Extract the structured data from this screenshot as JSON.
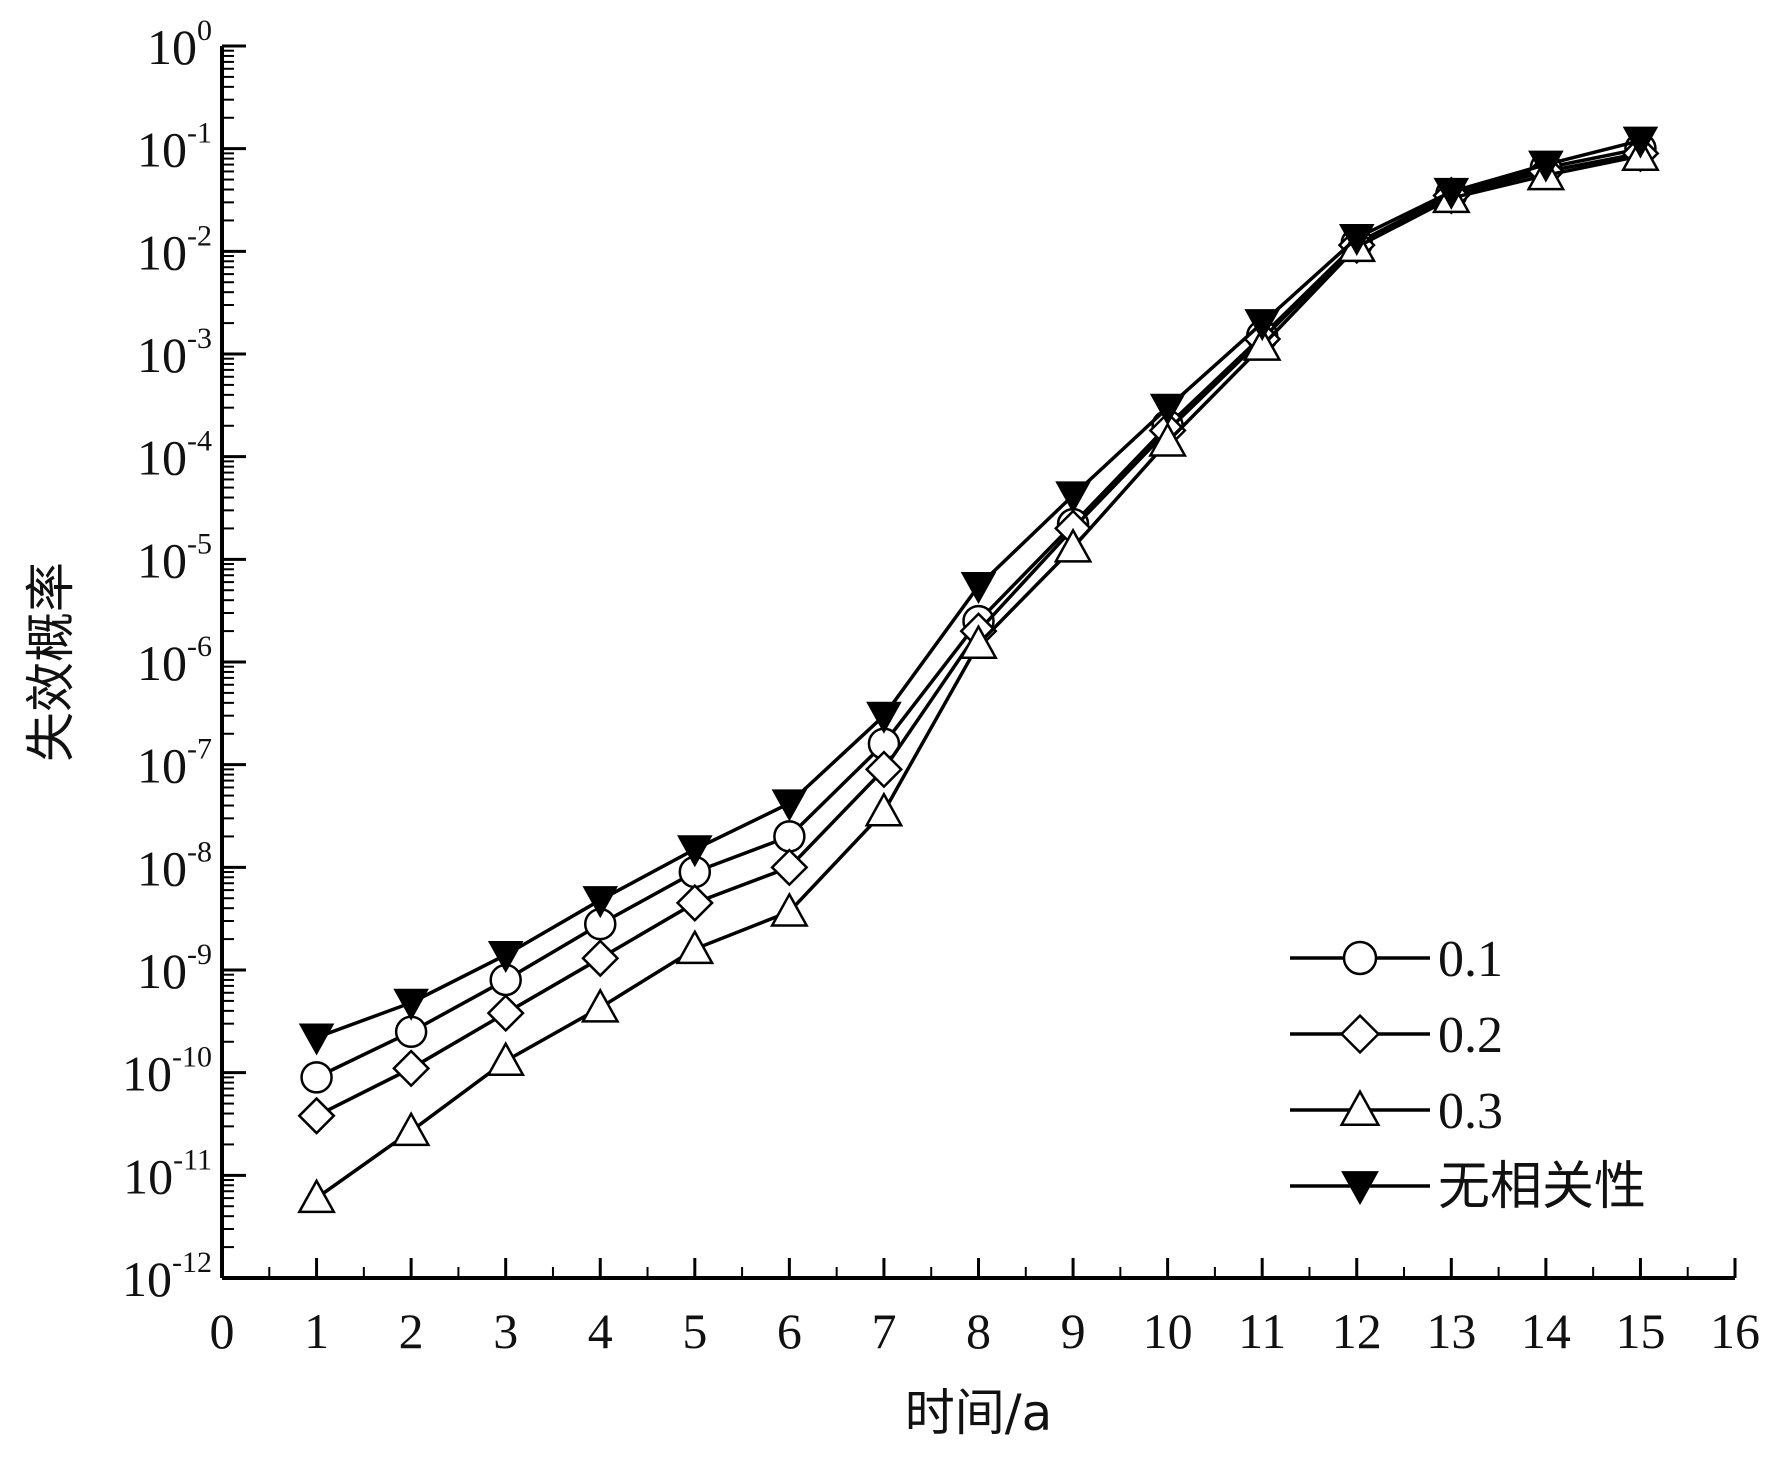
{
  "chart_data": {
    "type": "line",
    "title": "",
    "xlabel": "时间/a",
    "ylabel": "失效概率",
    "xlim": [
      0,
      16
    ],
    "xticks": [
      0,
      1,
      2,
      3,
      4,
      5,
      6,
      7,
      8,
      9,
      10,
      11,
      12,
      13,
      14,
      15,
      16
    ],
    "y_scale": "log",
    "ylim": [
      1e-12,
      1
    ],
    "ytick_base": "10",
    "ytick_exponents": [
      "-12",
      "-11",
      "-10",
      "-9",
      "-8",
      "-7",
      "-6",
      "-5",
      "-4",
      "-3",
      "-2",
      "-1",
      "0"
    ],
    "grid": false,
    "legend_position": "lower-right",
    "x": [
      1,
      2,
      3,
      4,
      5,
      6,
      7,
      8,
      9,
      10,
      11,
      12,
      13,
      14,
      15
    ],
    "series": [
      {
        "name": "0.1",
        "marker": "circle-open",
        "color": "#000000",
        "values": [
          9e-11,
          2.5e-10,
          8e-10,
          2.8e-09,
          9e-09,
          2e-08,
          1.6e-07,
          2.5e-06,
          2.2e-05,
          0.0002,
          0.0015,
          0.012,
          0.036,
          0.065,
          0.1
        ]
      },
      {
        "name": "0.2",
        "marker": "diamond-open",
        "color": "#000000",
        "values": [
          3.8e-11,
          1.1e-10,
          3.8e-10,
          1.3e-09,
          4.5e-09,
          1e-08,
          9e-08,
          2e-06,
          2e-05,
          0.00018,
          0.0014,
          0.0115,
          0.035,
          0.06,
          0.09
        ]
      },
      {
        "name": "0.3",
        "marker": "triangle-up-open",
        "color": "#000000",
        "values": [
          6e-12,
          2.7e-11,
          1.3e-10,
          4.3e-10,
          1.6e-09,
          3.7e-09,
          3.5e-08,
          1.5e-06,
          1.3e-05,
          0.00014,
          0.0012,
          0.011,
          0.033,
          0.055,
          0.085
        ]
      },
      {
        "name": "无相关性",
        "marker": "triangle-down-filled",
        "color": "#000000",
        "values": [
          2.2e-10,
          4.8e-10,
          1.4e-09,
          4.8e-09,
          1.5e-08,
          4.2e-08,
          3e-07,
          5.5e-06,
          4.2e-05,
          0.0003,
          0.002,
          0.0135,
          0.038,
          0.07,
          0.12
        ]
      }
    ]
  }
}
